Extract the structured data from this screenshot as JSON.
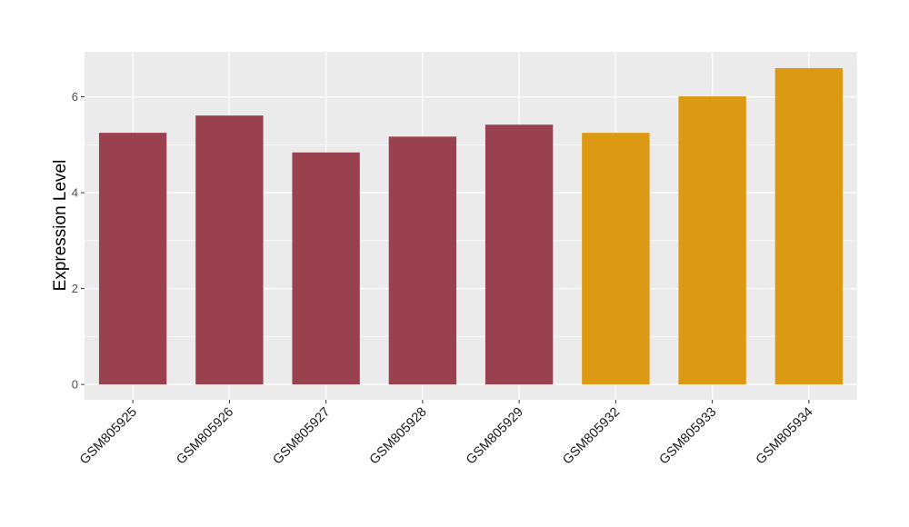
{
  "chart_data": {
    "type": "bar",
    "title": "",
    "xlabel": "",
    "ylabel": "Expression Level",
    "categories": [
      "GSM805925",
      "GSM805926",
      "GSM805927",
      "GSM805928",
      "GSM805929",
      "GSM805932",
      "GSM805933",
      "GSM805934"
    ],
    "values": [
      5.25,
      5.61,
      4.84,
      5.17,
      5.42,
      5.25,
      6.01,
      6.6
    ],
    "groups": [
      "group1",
      "group1",
      "group1",
      "group1",
      "group1",
      "group2",
      "group2",
      "group2"
    ],
    "group_colors": {
      "group1": "#99414f",
      "group2": "#dc9a14"
    },
    "ylim": [
      -0.32,
      6.94
    ],
    "yticks": [
      0,
      2,
      4,
      6
    ],
    "grid": true,
    "legend": "none",
    "panel_background": "#ebebeb"
  }
}
